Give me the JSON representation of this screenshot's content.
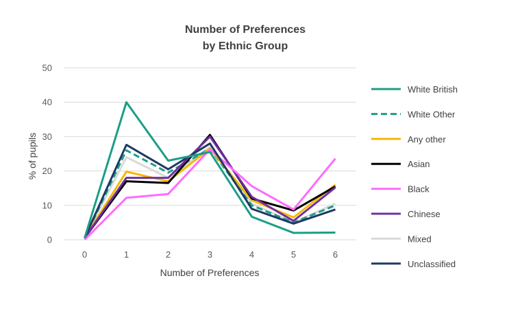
{
  "chart_data": {
    "type": "line",
    "title": [
      "Number of Preferences",
      "by Ethnic Group"
    ],
    "xlabel": "Number of Preferences",
    "ylabel": "% of pupils",
    "x": [
      0,
      1,
      2,
      3,
      4,
      5,
      6
    ],
    "ylim": [
      0,
      50
    ],
    "yticks": [
      0,
      10,
      20,
      30,
      40,
      50
    ],
    "grid": true,
    "legend_position": "right",
    "series": [
      {
        "name": "White British",
        "color": "#1a9e85",
        "dash": "solid",
        "values": [
          0.5,
          40,
          23,
          25.5,
          6.7,
          2,
          2.1
        ]
      },
      {
        "name": "White Other",
        "color": "#1a9e85",
        "dash": "dashed",
        "values": [
          0.5,
          26,
          19.5,
          26.5,
          10,
          5,
          10
        ]
      },
      {
        "name": "Any other",
        "color": "#f5b800",
        "dash": "solid",
        "values": [
          0.5,
          19.8,
          17,
          26.5,
          11.5,
          6.5,
          16
        ]
      },
      {
        "name": "Asian",
        "color": "#000000",
        "dash": "solid",
        "values": [
          0.5,
          17,
          16.5,
          30.5,
          12,
          8.5,
          15.5
        ]
      },
      {
        "name": "Black",
        "color": "#ff6bff",
        "dash": "solid",
        "values": [
          0,
          12.2,
          13.3,
          26.3,
          15.6,
          8.8,
          23.6
        ]
      },
      {
        "name": "Chinese",
        "color": "#7030a0",
        "dash": "solid",
        "values": [
          0.5,
          18,
          18,
          30,
          12.5,
          5.5,
          15.2
        ]
      },
      {
        "name": "Mixed",
        "color": "#d9d9d9",
        "dash": "solid",
        "values": [
          0.5,
          24,
          18,
          27,
          10.5,
          5,
          10.5
        ]
      },
      {
        "name": "Unclassified",
        "color": "#1f3864",
        "dash": "solid",
        "values": [
          0.5,
          27.6,
          20.5,
          28,
          9,
          4.7,
          8.8
        ]
      }
    ]
  }
}
